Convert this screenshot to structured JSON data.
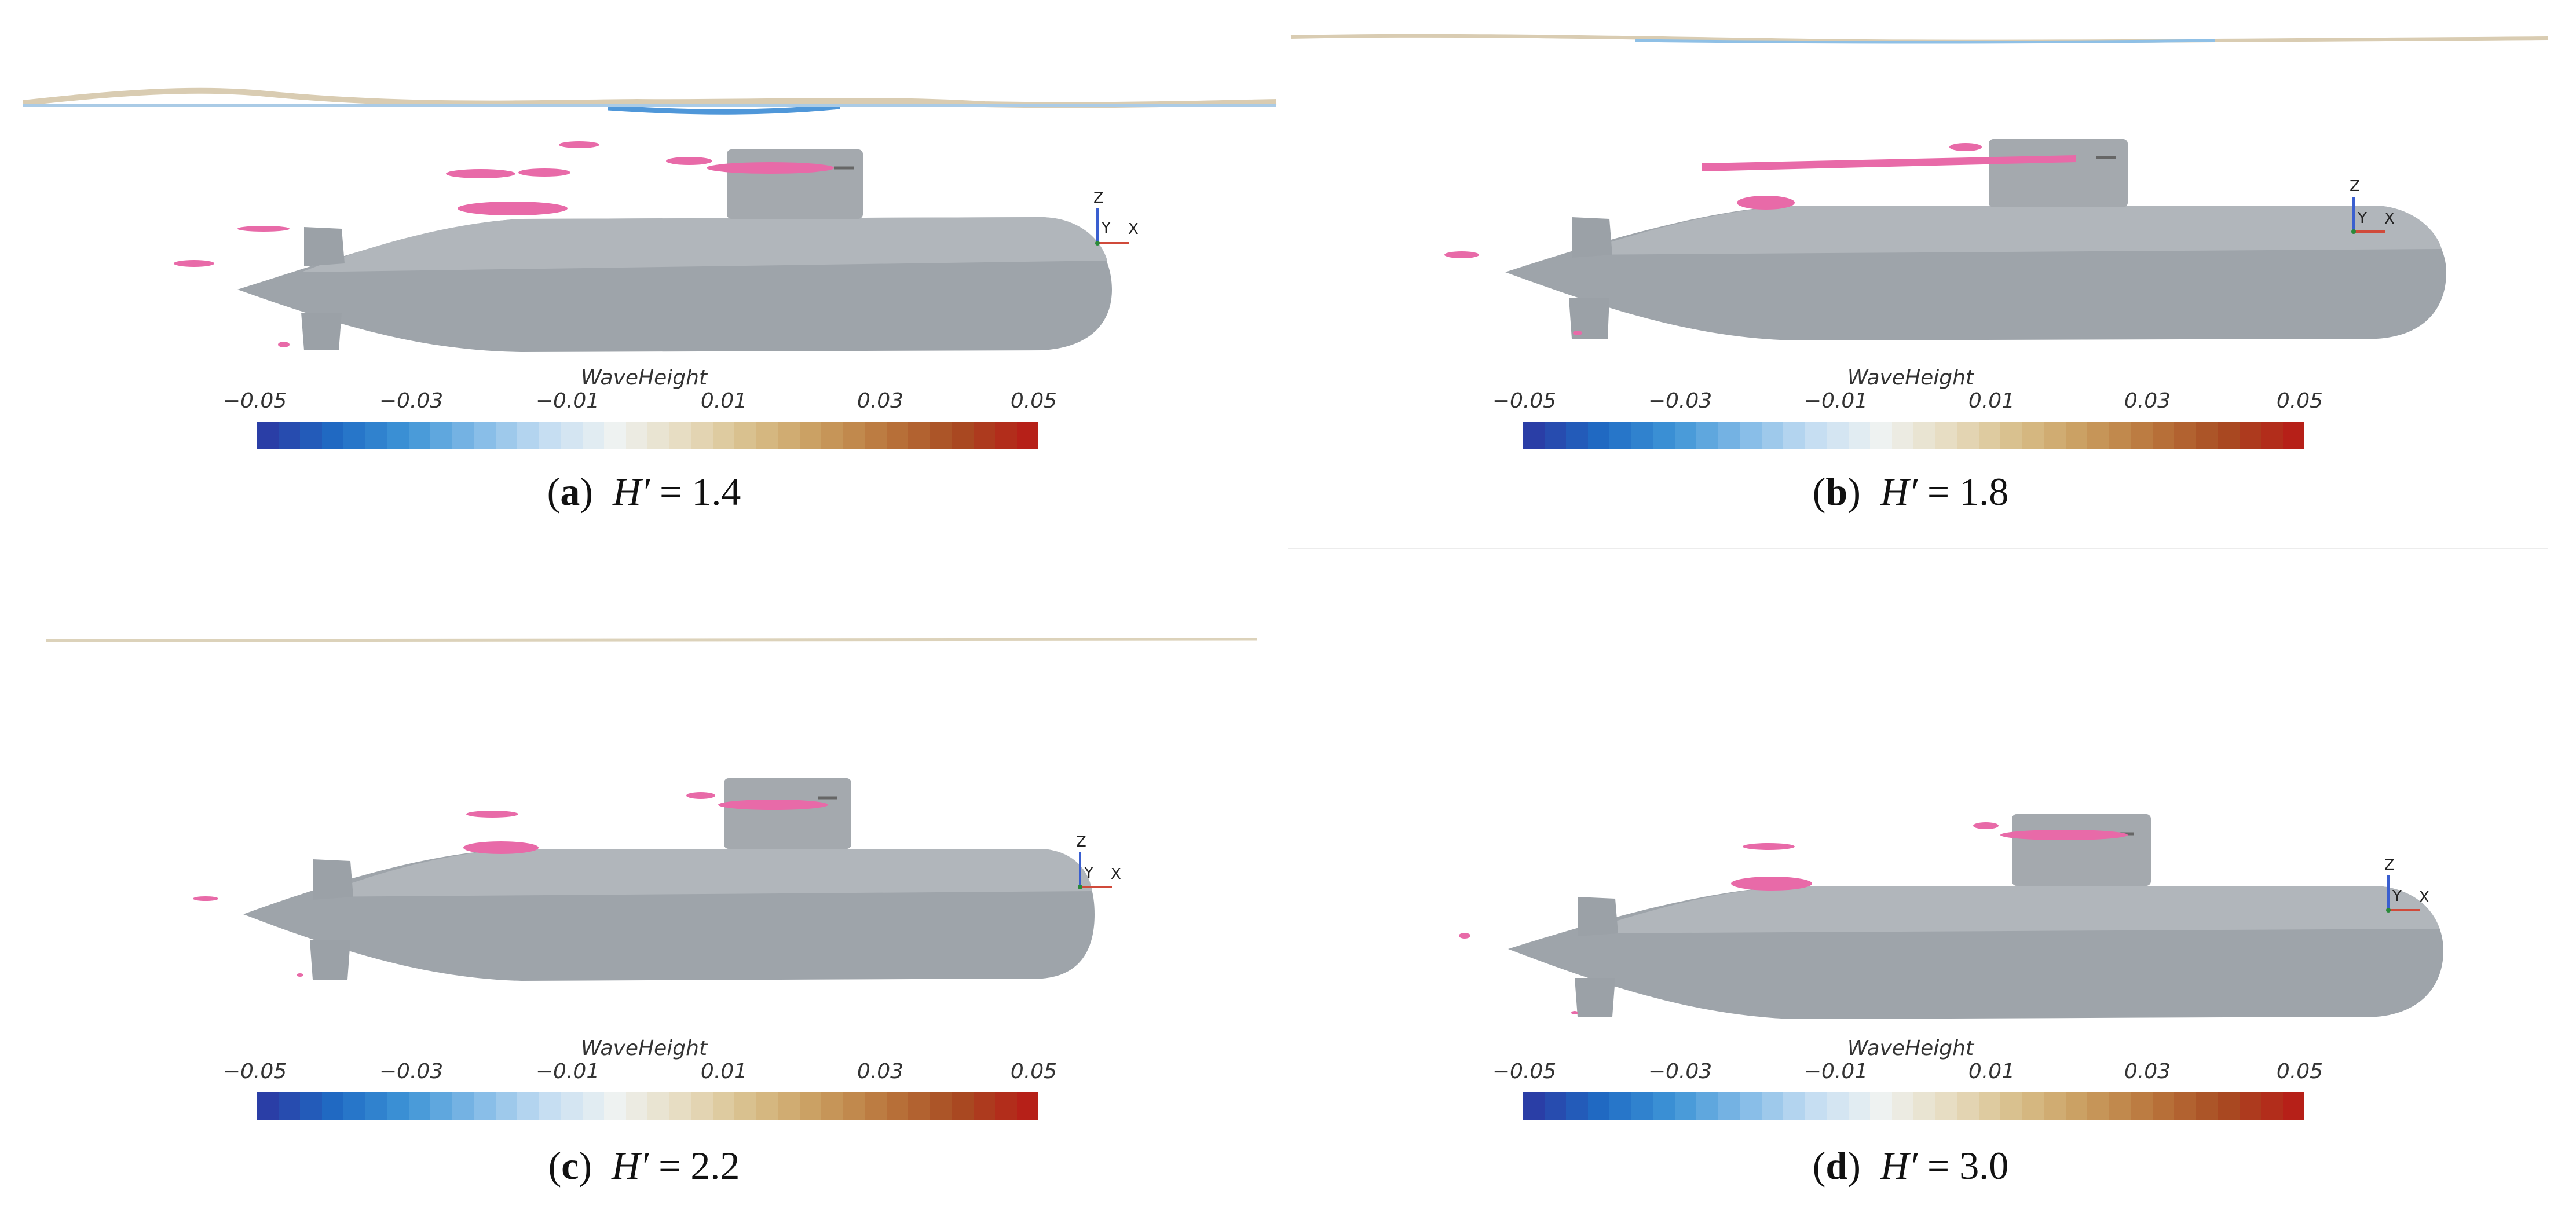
{
  "colorbar": {
    "title": "WaveHeight",
    "ticks": [
      "−0.05",
      "−0.03",
      "−0.01",
      "0.01",
      "0.03",
      "0.05"
    ],
    "range": [
      -0.05,
      0.05
    ],
    "colors_low_to_high": [
      "#2a3ea6",
      "#1f6cc4",
      "#3d93d6",
      "#7fb9e6",
      "#c2dcf2",
      "#eef3f2",
      "#e7dcc2",
      "#d8bf8a",
      "#c99c5e",
      "#b9743b",
      "#a84a22",
      "#b62018"
    ]
  },
  "axis_triad": {
    "z": "Z",
    "y": "Y",
    "x": "X"
  },
  "panels": [
    {
      "label": "a",
      "variable": "H′",
      "equals": "= 1.4"
    },
    {
      "label": "b",
      "variable": "H′",
      "equals": "= 1.8"
    },
    {
      "label": "c",
      "variable": "H′",
      "equals": "= 2.2"
    },
    {
      "label": "d",
      "variable": "H′",
      "equals": "= 3.0"
    }
  ]
}
